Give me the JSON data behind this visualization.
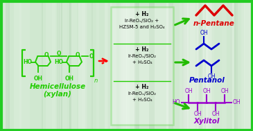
{
  "bg_color": "#d8ecd8",
  "border_color": "#22cc22",
  "hemicellulose_color": "#22cc00",
  "product1": "n-Pentane",
  "product1_color": "#dd0000",
  "product2": "Pentanol",
  "product2_color": "#0000cc",
  "product3": "Xylitol",
  "product3_color": "#9900cc",
  "arrow_color": "#22bb00",
  "box_color": "#22cc00",
  "text_color": "#111111",
  "r1_line1": "+ H₂",
  "r1_line2": "Ir-ReOₓ/SiO₂ +",
  "r1_line3": "HZSM-5 and H₂SO₄",
  "r2_line1": "+ H₂",
  "r2_line2": "Ir-ReOₓ/SiO₂",
  "r2_line3": "+ H₂SO₄",
  "r3_line1": "+ H₂",
  "r3_line2": "Ir-ReOₓ/SiO₂",
  "r3_line3": "+ H₂SO₄",
  "hemi_label1": "Hemicellulose",
  "hemi_label2": "(xylan)"
}
